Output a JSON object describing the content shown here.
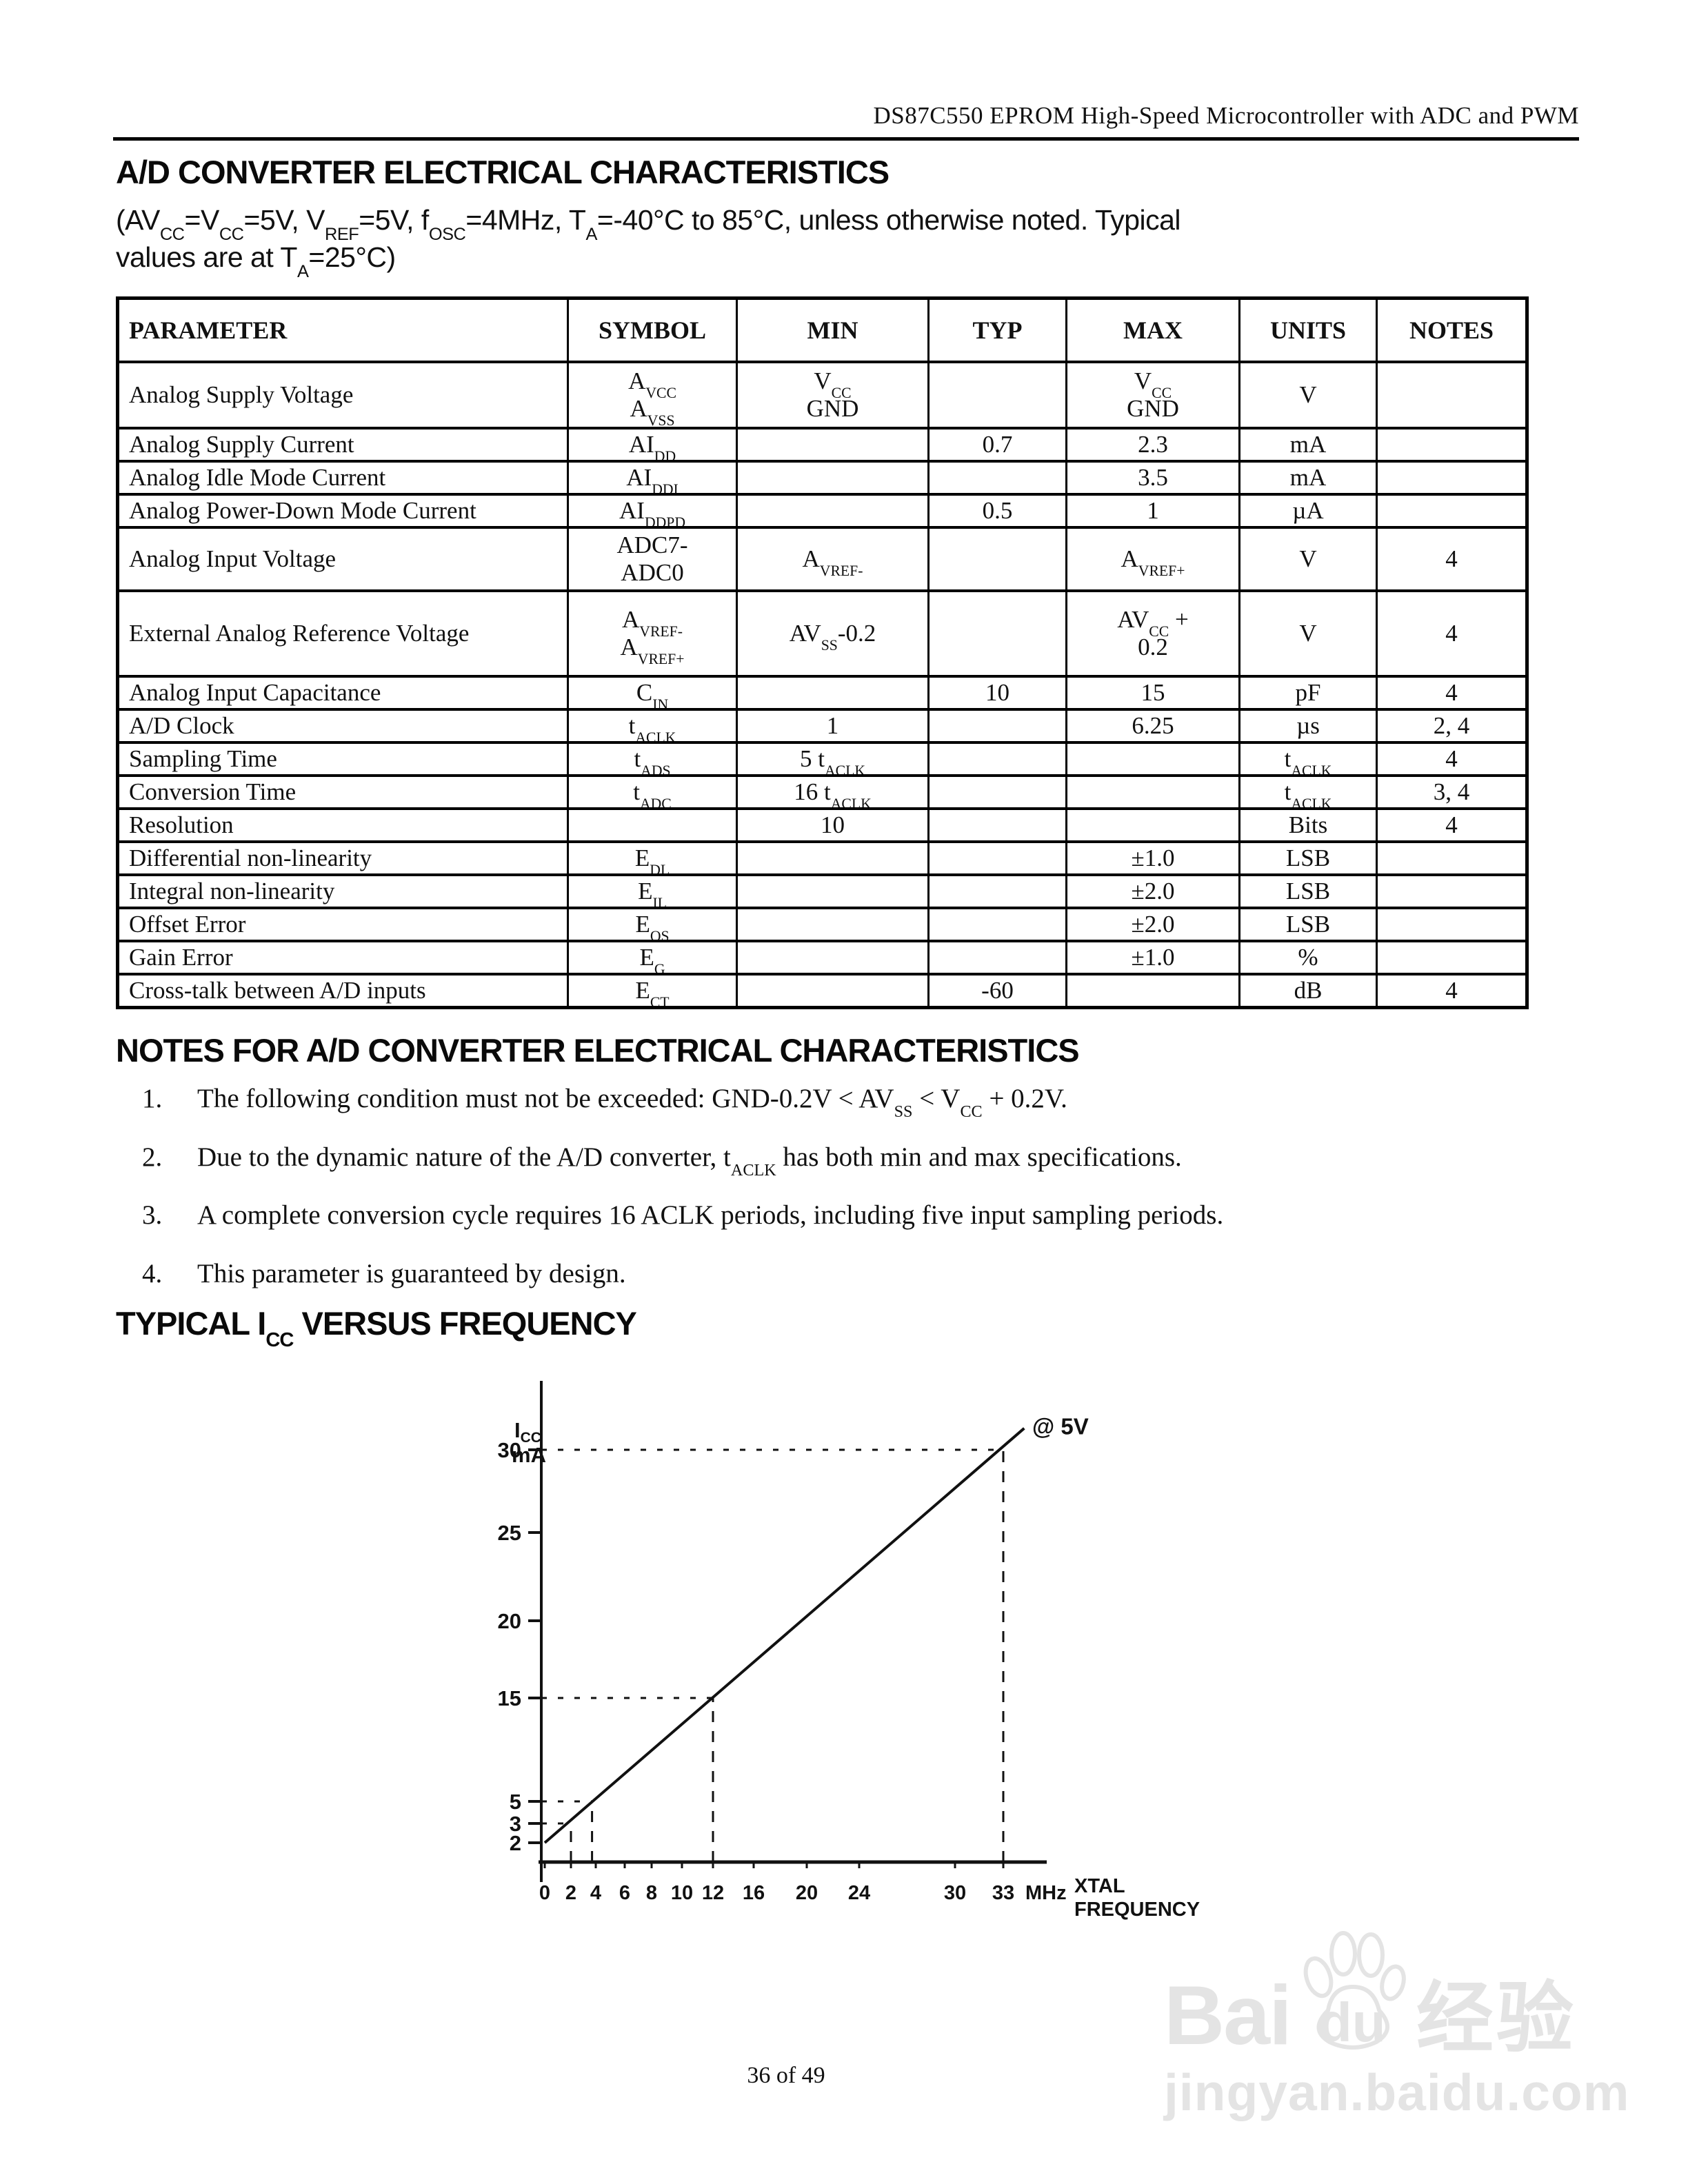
{
  "header": {
    "title": "DS87C550 EPROM High-Speed Microcontroller with ADC and PWM"
  },
  "characteristics": {
    "title": "A/D CONVERTER ELECTRICAL CHARACTERISTICS",
    "subtitle": "(AV~CC~=V~CC~=5V, V~REF~=5V, f~OSC~=4MHz, T~A~=-40°C to 85°C, unless otherwise noted. Typical\nvalues are at T~A~=25°C)"
  },
  "table": {
    "columns": [
      "PARAMETER",
      "SYMBOL",
      "MIN",
      "TYP",
      "MAX",
      "UNITS",
      "NOTES"
    ],
    "rows": [
      {
        "parameter": "Analog Supply Voltage",
        "symbol": "A~VCC~\nA~VSS~",
        "min": "V~CC~\nGND",
        "typ": "",
        "max": "V~CC~\nGND",
        "units": "V",
        "notes": ""
      },
      {
        "parameter": "Analog Supply Current",
        "symbol": "AI~DD~",
        "min": "",
        "typ": "0.7",
        "max": "2.3",
        "units": "mA",
        "notes": ""
      },
      {
        "parameter": "Analog Idle Mode Current",
        "symbol": "AI~DDI~",
        "min": "",
        "typ": "",
        "max": "3.5",
        "units": "mA",
        "notes": ""
      },
      {
        "parameter": "Analog Power-Down Mode Current",
        "symbol": "AI~DDPD~",
        "min": "",
        "typ": "0.5",
        "max": "1",
        "units": "µA",
        "notes": ""
      },
      {
        "parameter": "Analog Input Voltage",
        "symbol": "ADC7-\nADC0",
        "min": "A~VREF-~",
        "typ": "",
        "max": "A~VREF+~",
        "units": "V",
        "notes": "4"
      },
      {
        "parameter": "External Analog Reference Voltage",
        "symbol": "A~VREF-~\nA~VREF+~",
        "min": "AV~SS~-0.2",
        "typ": "",
        "max": "AV~CC~ +\n0.2",
        "units": "V",
        "notes": "4"
      },
      {
        "parameter": "Analog Input Capacitance",
        "symbol": "C~IN~",
        "min": "",
        "typ": "10",
        "max": "15",
        "units": "pF",
        "notes": "4"
      },
      {
        "parameter": "A/D Clock",
        "symbol": "t~ACLK~",
        "min": "1",
        "typ": "",
        "max": "6.25",
        "units": "µs",
        "notes": "2, 4"
      },
      {
        "parameter": "Sampling Time",
        "symbol": "t~ADS~",
        "min": "5 t~ACLK~",
        "typ": "",
        "max": "",
        "units": "t~ACLK~",
        "notes": "4"
      },
      {
        "parameter": "Conversion Time",
        "symbol": "t~ADC~",
        "min": "16 t~ACLK~",
        "typ": "",
        "max": "",
        "units": "t~ACLK~",
        "notes": "3, 4"
      },
      {
        "parameter": "Resolution",
        "symbol": "",
        "min": "10",
        "typ": "",
        "max": "",
        "units": "Bits",
        "notes": "4"
      },
      {
        "parameter": "Differential non-linearity",
        "symbol": "E~DL~",
        "min": "",
        "typ": "",
        "max": "±1.0",
        "units": "LSB",
        "notes": ""
      },
      {
        "parameter": "Integral non-linearity",
        "symbol": "E~IL~",
        "min": "",
        "typ": "",
        "max": "±2.0",
        "units": "LSB",
        "notes": ""
      },
      {
        "parameter": "Offset Error",
        "symbol": "E~OS~",
        "min": "",
        "typ": "",
        "max": "±2.0",
        "units": "LSB",
        "notes": ""
      },
      {
        "parameter": "Gain Error",
        "symbol": "E~G~",
        "min": "",
        "typ": "",
        "max": "±1.0",
        "units": "%",
        "notes": ""
      },
      {
        "parameter": "Cross-talk between A/D inputs",
        "symbol": "E~CT~",
        "min": "",
        "typ": "-60",
        "max": "",
        "units": "dB",
        "notes": "4"
      }
    ]
  },
  "notes_section": {
    "title": "NOTES FOR A/D CONVERTER ELECTRICAL CHARACTERISTICS",
    "items": [
      "The following condition must not be exceeded: GND-0.2V < AV~SS~ < V~CC~ + 0.2V.",
      "Due to the dynamic nature of the A/D converter, t~ACLK~ has both min and max specifications.",
      "A complete conversion cycle requires 16 ACLK periods, including five input sampling periods.",
      "This parameter is guaranteed by design."
    ]
  },
  "figure": {
    "title": "TYPICAL I~CC~ VERSUS FREQUENCY"
  },
  "chart_data": {
    "type": "line",
    "title": "TYPICAL ICC VERSUS FREQUENCY",
    "xlabel": "XTAL\nFREQUENCY",
    "ylabel": "I~CC~\nmA",
    "x_unit": "MHz",
    "x_ticks": [
      0,
      2,
      4,
      6,
      8,
      10,
      12,
      16,
      20,
      24,
      30,
      33
    ],
    "y_ticks": [
      2,
      3,
      5,
      15,
      20,
      25,
      30
    ],
    "xlim": [
      0,
      36
    ],
    "ylim": [
      0,
      33
    ],
    "grid": false,
    "legend": false,
    "series": [
      {
        "name": "ICC @ 5V",
        "x": [
          0,
          34.3
        ],
        "y": [
          2,
          31.3
        ]
      }
    ],
    "guides": [
      {
        "x": 2,
        "y": 3
      },
      {
        "x": 3.7,
        "y": 5
      },
      {
        "x": 12,
        "y": 15
      },
      {
        "x": 33,
        "y": 30
      }
    ],
    "annotation": {
      "text": "@ 5V",
      "x": 34.8,
      "y": 31.4
    }
  },
  "page": {
    "footer": "36 of 49"
  },
  "watermark": {
    "brand_a": "Bai",
    "brand_b": "du",
    "brand_cn": "经验",
    "url": "jingyan.baidu.com"
  }
}
